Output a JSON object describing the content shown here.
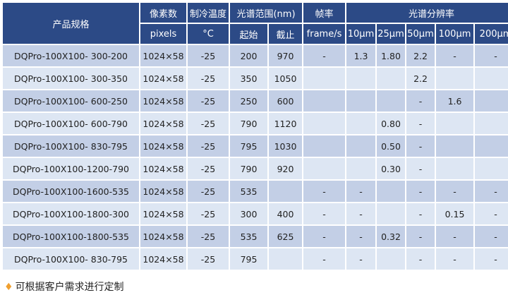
{
  "header": {
    "product": "产品规格",
    "pixels": "像素数",
    "pixels_unit": "pixels",
    "cooling": "制冷温度",
    "cooling_unit": "°C",
    "range": "光谱范围(nm)",
    "start": "起始",
    "end": "截止",
    "frame": "帧率",
    "frame_unit": "frame/s",
    "resolution": "光谱分辨率",
    "slits": [
      "10μm",
      "25μm",
      "50μm",
      "100μm",
      "200μm"
    ]
  },
  "rows": [
    [
      "DQPro-100X100- 300-200",
      "1024×58",
      "-25",
      "200",
      "970",
      "-",
      "1.3",
      "1.80",
      "2.2",
      "-",
      "-"
    ],
    [
      "DQPro-100X100- 300-350",
      "1024×58",
      "-25",
      "350",
      "1050",
      "",
      "",
      "",
      "2.2",
      "",
      ""
    ],
    [
      "DQPro-100X100- 600-250",
      "1024×58",
      "-25",
      "250",
      "600",
      "",
      "",
      "",
      "-",
      "1.6",
      ""
    ],
    [
      "DQPro-100X100- 600-790",
      "1024×58",
      "-25",
      "790",
      "1120",
      "",
      "",
      "0.80",
      "-",
      "",
      ""
    ],
    [
      "DQPro-100X100- 830-795",
      "1024×58",
      "-25",
      "795",
      "1030",
      "",
      "",
      "0.50",
      "-",
      "",
      ""
    ],
    [
      "DQPro-100X100-1200-790",
      "1024×58",
      "-25",
      "790",
      "920",
      "",
      "",
      "0.30",
      "-",
      "",
      ""
    ],
    [
      "DQPro-100X100-1600-535",
      "1024×58",
      "-25",
      "535",
      "",
      "-",
      "-",
      "",
      "-",
      "-",
      "-"
    ],
    [
      "DQPro-100X100-1800-300",
      "1024×58",
      "-25",
      "300",
      "400",
      "-",
      "-",
      "",
      "-",
      "0.15",
      "-"
    ],
    [
      "DQPro-100X100-1800-535",
      "1024×58",
      "-25",
      "535",
      "625",
      "-",
      "-",
      "0.32",
      "-",
      "-",
      "-"
    ],
    [
      "DQPro-100X100- 830-795",
      "1024×58",
      "-25",
      "795",
      "",
      "-",
      "-",
      "",
      "-",
      "-",
      "-"
    ]
  ],
  "note": "可根据客户需求进行定制",
  "colors": {
    "header": "#2c4a86",
    "row_dark": "#c3cfe6",
    "row_light": "#dde6f3",
    "accent": "#f0a030"
  }
}
